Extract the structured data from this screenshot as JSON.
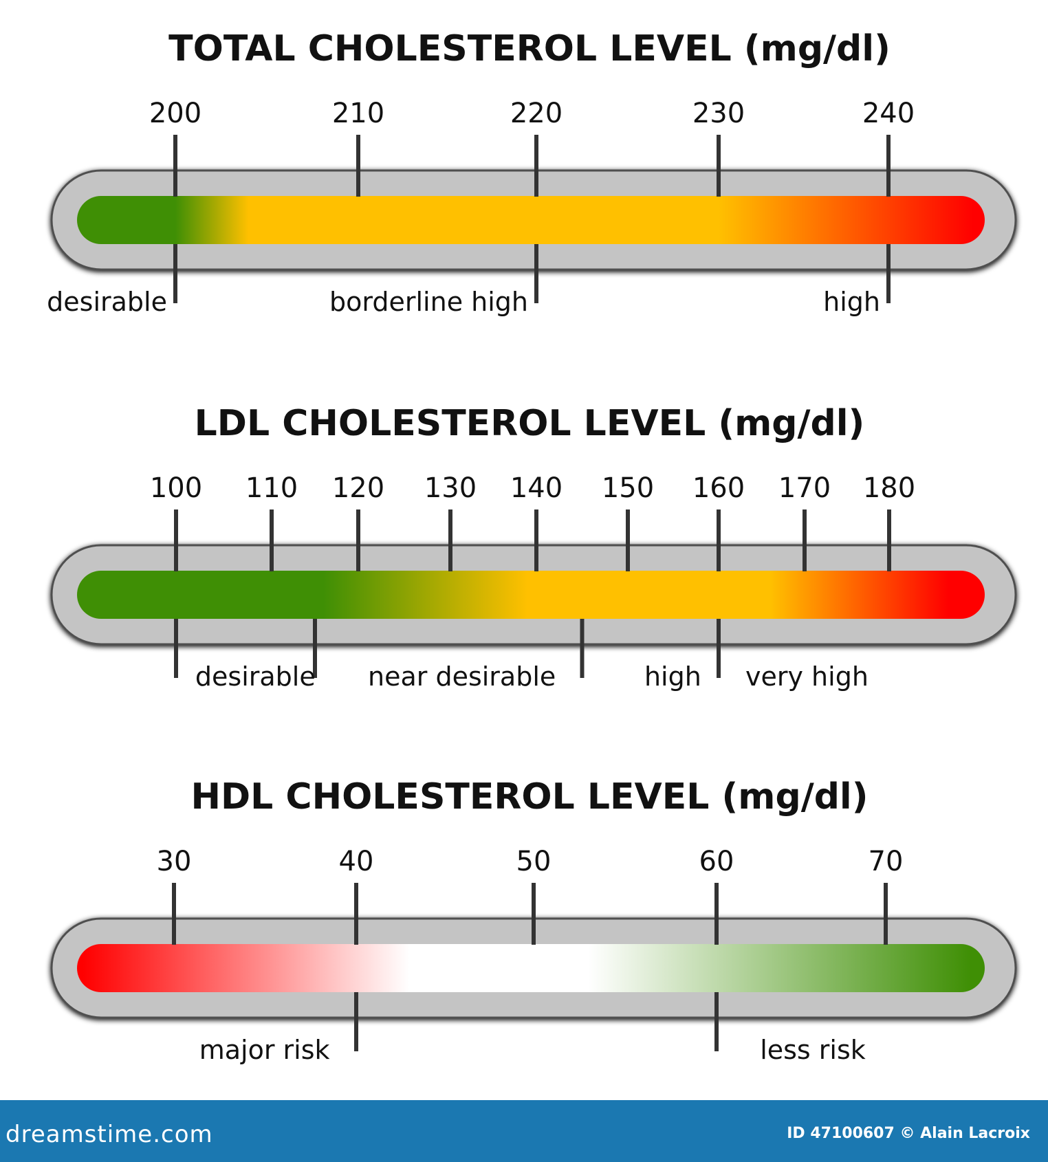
{
  "colors": {
    "track": "#c4c4c4",
    "track_border": "#505050",
    "tick": "#333333",
    "green": "#3f8f05",
    "yellow": "#ffc000",
    "orange": "#ff8c00",
    "red": "#ff0000",
    "white": "#ffffff",
    "footer": "#1b78b1"
  },
  "chart_data": [
    {
      "type": "gauge",
      "title": "TOTAL CHOLESTEROL LEVEL (mg/dl)",
      "ticks": [
        200,
        210,
        220,
        230,
        240
      ],
      "tick_labels": [
        "200",
        "210",
        "220",
        "230",
        "240"
      ],
      "gradient": [
        {
          "color": "green",
          "value": 200
        },
        {
          "color": "yellow",
          "value": 204
        },
        {
          "color": "yellow",
          "value": 230
        },
        {
          "color": "red",
          "value": 245
        }
      ],
      "boundaries": [
        200,
        220,
        240
      ],
      "zones": [
        {
          "label": "desirable",
          "anchor_value": 200,
          "align": "end"
        },
        {
          "label": "borderline high",
          "anchor_value": 220,
          "align": "end"
        },
        {
          "label": "high",
          "anchor_value": 240,
          "align": "end"
        }
      ]
    },
    {
      "type": "gauge",
      "title": "LDL CHOLESTEROL LEVEL (mg/dl)",
      "ticks": [
        100,
        110,
        120,
        130,
        140,
        150,
        160,
        170,
        180
      ],
      "tick_labels": [
        "100",
        "110",
        "120",
        "130",
        "140",
        "150",
        "160",
        "170",
        "180"
      ],
      "gradient": [
        {
          "color": "green",
          "value": 100
        },
        {
          "color": "green",
          "value": 116
        },
        {
          "color": "yellow",
          "value": 139
        },
        {
          "color": "yellow",
          "value": 166
        },
        {
          "color": "red",
          "value": 187
        }
      ],
      "boundaries": [
        100,
        115,
        145,
        160
      ],
      "zones": [
        {
          "label": "desirable",
          "anchor_value": 101,
          "align": "start"
        },
        {
          "label": "near desirable",
          "anchor_value": 120,
          "align": "start"
        },
        {
          "label": "high",
          "anchor_value": 159,
          "align": "end"
        },
        {
          "label": "very high",
          "anchor_value": 162,
          "align": "start"
        }
      ]
    },
    {
      "type": "gauge",
      "title": "HDL CHOLESTEROL LEVEL (mg/dl)",
      "ticks": [
        30,
        40,
        50,
        60,
        70
      ],
      "tick_labels": [
        "30",
        "40",
        "50",
        "60",
        "70"
      ],
      "gradient": [
        {
          "color": "red",
          "value": 25
        },
        {
          "color": "white",
          "value": 43
        },
        {
          "color": "white",
          "value": 53
        },
        {
          "color": "green",
          "value": 75
        }
      ],
      "boundaries": [
        40,
        60
      ],
      "zones": [
        {
          "label": "major risk",
          "anchor_value": 39,
          "align": "end"
        },
        {
          "label": "less risk",
          "anchor_value": 62,
          "align": "start"
        }
      ]
    }
  ],
  "footer": {
    "brand": "dreamstime.com",
    "credit": "ID 47100607 © Alain Lacroix"
  }
}
